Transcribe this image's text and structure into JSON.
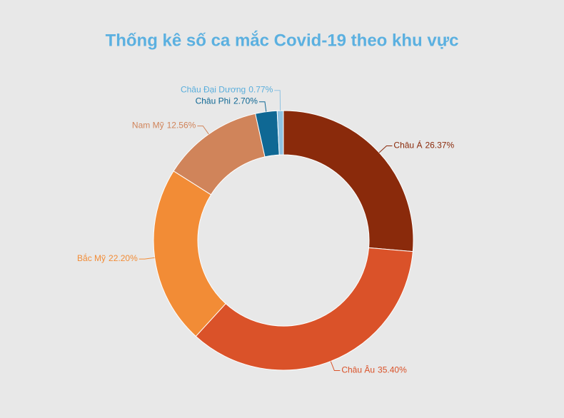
{
  "chart_data": {
    "type": "donut",
    "title": "Thống kê số ca mắc Covid-19 theo khu vực",
    "categories": [
      "Châu Á",
      "Châu Âu",
      "Bắc Mỹ",
      "Nam Mỹ",
      "Châu Phi",
      "Châu Đại Dương"
    ],
    "values": [
      26.37,
      35.4,
      22.2,
      12.56,
      2.7,
      0.77
    ],
    "value_labels": [
      "26.37%",
      "35.40%",
      "22.20%",
      "12.56%",
      "2.70%",
      "0.77%"
    ],
    "colors": [
      "#8a2a0b",
      "#da5229",
      "#f28c36",
      "#d0845a",
      "#0f6894",
      "#8fc2e2"
    ]
  }
}
